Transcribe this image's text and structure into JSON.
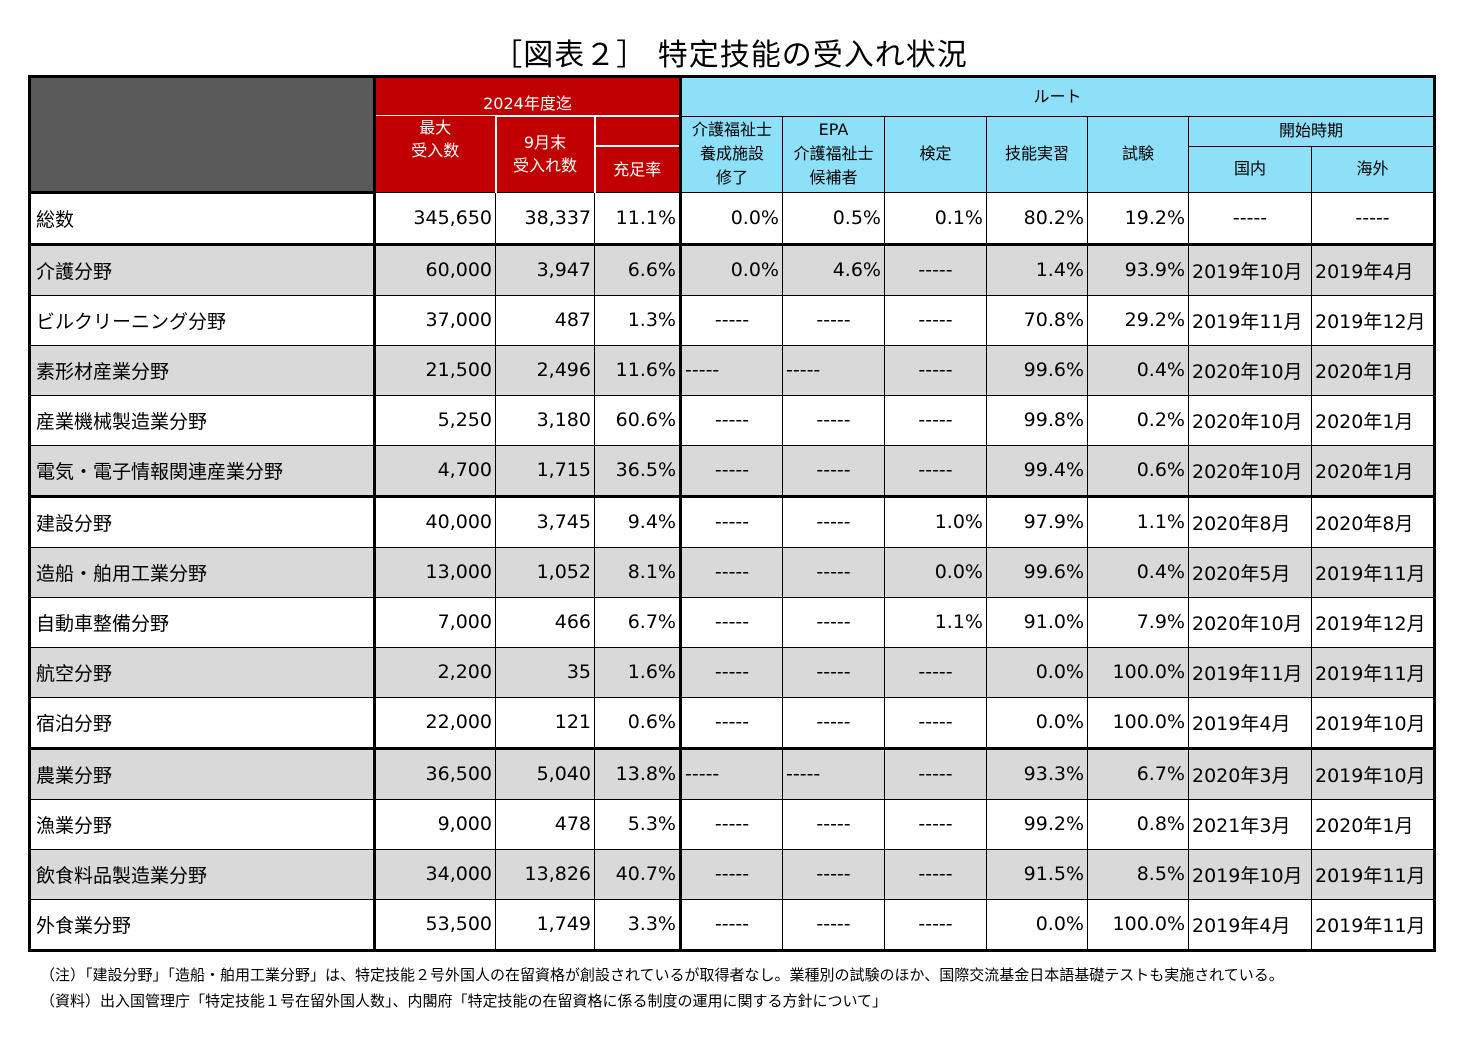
{
  "title": "［図表２］ 特定技能の受入れ状況",
  "header": {
    "max_accept": [
      "2024年度迄",
      "最大",
      "受入数"
    ],
    "sep_accept": [
      "9月末",
      "受入れ数"
    ],
    "fill_rate": "充足率",
    "route": "ルート",
    "route_cols": {
      "kaigo_school": [
        "介護福祉士",
        "養成施設",
        "修了"
      ],
      "epa": [
        "EPA",
        "介護福祉士",
        "候補者"
      ],
      "kentei": "検定",
      "ginou": "技能実習",
      "shiken": "試験"
    },
    "start": "開始時期",
    "domestic": "国内",
    "overseas": "海外"
  },
  "rows": [
    {
      "label": "総数",
      "max": "345,650",
      "sep": "38,337",
      "rate": "11.1%",
      "kaigo": "0.0%",
      "epa": "0.5%",
      "kentei": "0.1%",
      "ginou": "80.2%",
      "shiken": "19.2%",
      "dom": "-----",
      "ovs": "-----"
    },
    {
      "label": "介護分野",
      "max": "60,000",
      "sep": "3,947",
      "rate": "6.6%",
      "kaigo": "0.0%",
      "epa": "4.6%",
      "kentei": "-----",
      "ginou": "1.4%",
      "shiken": "93.9%",
      "dom": "2019年10月",
      "ovs": "2019年4月"
    },
    {
      "label": "ビルクリーニング分野",
      "max": "37,000",
      "sep": "487",
      "rate": "1.3%",
      "kaigo": "-----",
      "epa": "-----",
      "kentei": "-----",
      "ginou": "70.8%",
      "shiken": "29.2%",
      "dom": "2019年11月",
      "ovs": "2019年12月"
    },
    {
      "label": "素形材産業分野",
      "max": "21,500",
      "sep": "2,496",
      "rate": "11.6%",
      "kaigo": "-----",
      "epa": "-----",
      "kentei": "-----",
      "ginou": "99.6%",
      "shiken": "0.4%",
      "dom": "2020年10月",
      "ovs": "2020年1月"
    },
    {
      "label": "産業機械製造業分野",
      "max": "5,250",
      "sep": "3,180",
      "rate": "60.6%",
      "kaigo": "-----",
      "epa": "-----",
      "kentei": "-----",
      "ginou": "99.8%",
      "shiken": "0.2%",
      "dom": "2020年10月",
      "ovs": "2020年1月"
    },
    {
      "label": "電気・電子情報関連産業分野",
      "max": "4,700",
      "sep": "1,715",
      "rate": "36.5%",
      "kaigo": "-----",
      "epa": "-----",
      "kentei": "-----",
      "ginou": "99.4%",
      "shiken": "0.6%",
      "dom": "2020年10月",
      "ovs": "2020年1月"
    },
    {
      "label": "建設分野",
      "max": "40,000",
      "sep": "3,745",
      "rate": "9.4%",
      "kaigo": "-----",
      "epa": "-----",
      "kentei": "1.0%",
      "ginou": "97.9%",
      "shiken": "1.1%",
      "dom": "2020年8月",
      "ovs": "2020年8月"
    },
    {
      "label": "造船・舶用工業分野",
      "max": "13,000",
      "sep": "1,052",
      "rate": "8.1%",
      "kaigo": "-----",
      "epa": "-----",
      "kentei": "0.0%",
      "ginou": "99.6%",
      "shiken": "0.4%",
      "dom": "2020年5月",
      "ovs": "2019年11月"
    },
    {
      "label": "自動車整備分野",
      "max": "7,000",
      "sep": "466",
      "rate": "6.7%",
      "kaigo": "-----",
      "epa": "-----",
      "kentei": "1.1%",
      "ginou": "91.0%",
      "shiken": "7.9%",
      "dom": "2020年10月",
      "ovs": "2019年12月"
    },
    {
      "label": "航空分野",
      "max": "2,200",
      "sep": "35",
      "rate": "1.6%",
      "kaigo": "-----",
      "epa": "-----",
      "kentei": "-----",
      "ginou": "0.0%",
      "shiken": "100.0%",
      "dom": "2019年11月",
      "ovs": "2019年11月"
    },
    {
      "label": "宿泊分野",
      "max": "22,000",
      "sep": "121",
      "rate": "0.6%",
      "kaigo": "-----",
      "epa": "-----",
      "kentei": "-----",
      "ginou": "0.0%",
      "shiken": "100.0%",
      "dom": "2019年4月",
      "ovs": "2019年10月"
    },
    {
      "label": "農業分野",
      "max": "36,500",
      "sep": "5,040",
      "rate": "13.8%",
      "kaigo": "-----",
      "epa": "-----",
      "kentei": "-----",
      "ginou": "93.3%",
      "shiken": "6.7%",
      "dom": "2020年3月",
      "ovs": "2019年10月"
    },
    {
      "label": "漁業分野",
      "max": "9,000",
      "sep": "478",
      "rate": "5.3%",
      "kaigo": "-----",
      "epa": "-----",
      "kentei": "-----",
      "ginou": "99.2%",
      "shiken": "0.8%",
      "dom": "2021年3月",
      "ovs": "2020年1月"
    },
    {
      "label": "飲食料品製造業分野",
      "max": "34,000",
      "sep": "13,826",
      "rate": "40.7%",
      "kaigo": "-----",
      "epa": "-----",
      "kentei": "-----",
      "ginou": "91.5%",
      "shiken": "8.5%",
      "dom": "2019年10月",
      "ovs": "2019年11月"
    },
    {
      "label": "外食業分野",
      "max": "53,500",
      "sep": "1,749",
      "rate": "3.3%",
      "kaigo": "-----",
      "epa": "-----",
      "kentei": "-----",
      "ginou": "0.0%",
      "shiken": "100.0%",
      "dom": "2019年4月",
      "ovs": "2019年11月"
    }
  ],
  "notes": [
    "（注）「建設分野」「造船・舶用工業分野」は、特定技能２号外国人の在留資格が創設されているが取得者なし。業種別の試験のほか、国際交流基金日本語基礎テストも実施されている。",
    "（資料）出入国管理庁「特定技能１号在留外国人数」、内閣府「特定技能の在留資格に係る制度の運用に関する方針について」"
  ]
}
